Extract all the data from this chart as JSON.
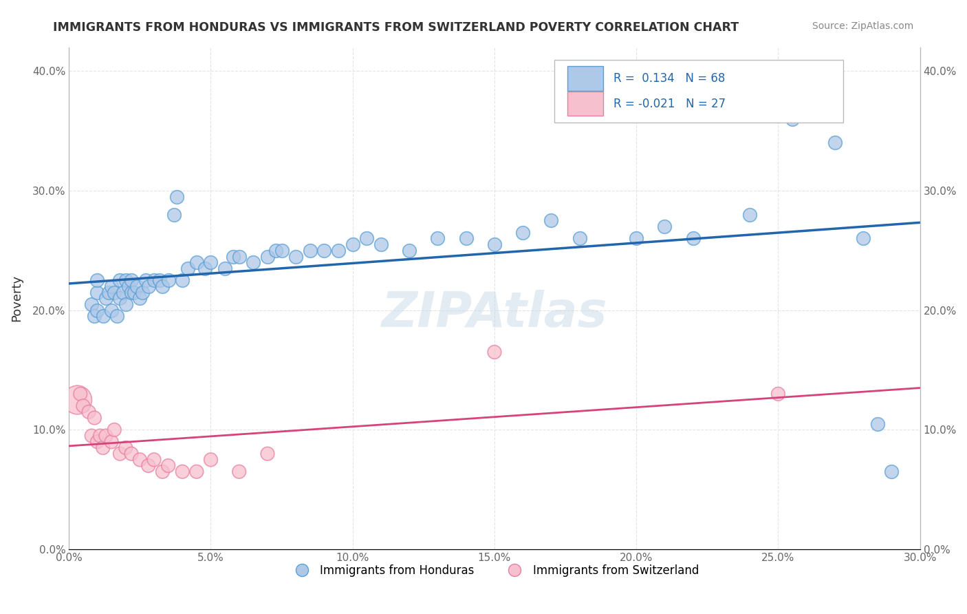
{
  "title": "IMMIGRANTS FROM HONDURAS VS IMMIGRANTS FROM SWITZERLAND POVERTY CORRELATION CHART",
  "source": "Source: ZipAtlas.com",
  "watermark": "ZIPAtlas",
  "xlabel_blue": "Immigrants from Honduras",
  "xlabel_pink": "Immigrants from Switzerland",
  "ylabel": "Poverty",
  "xlim": [
    0.0,
    0.3
  ],
  "ylim": [
    0.0,
    0.42
  ],
  "xtick_vals": [
    0.0,
    0.05,
    0.1,
    0.15,
    0.2,
    0.25,
    0.3
  ],
  "xtick_labels": [
    "0.0%",
    "5.0%",
    "10.0%",
    "15.0%",
    "20.0%",
    "25.0%",
    "30.0%"
  ],
  "ytick_vals": [
    0.0,
    0.1,
    0.2,
    0.3,
    0.4
  ],
  "ytick_labels": [
    "0.0%",
    "10.0%",
    "20.0%",
    "30.0%",
    "40.0%"
  ],
  "blue_R": 0.134,
  "blue_N": 68,
  "pink_R": -0.021,
  "pink_N": 27,
  "blue_color": "#aec8e8",
  "pink_color": "#f7c0ce",
  "blue_edge_color": "#5a9fd4",
  "pink_edge_color": "#e87fa0",
  "blue_line_color": "#2166ac",
  "pink_line_color": "#d6437a",
  "legend_border_color": "#cccccc",
  "grid_color": "#dddddd",
  "blue_x": [
    0.008,
    0.009,
    0.01,
    0.01,
    0.01,
    0.012,
    0.013,
    0.014,
    0.015,
    0.015,
    0.016,
    0.017,
    0.018,
    0.018,
    0.019,
    0.02,
    0.02,
    0.021,
    0.022,
    0.022,
    0.023,
    0.024,
    0.025,
    0.026,
    0.027,
    0.028,
    0.03,
    0.032,
    0.033,
    0.035,
    0.037,
    0.038,
    0.04,
    0.042,
    0.045,
    0.048,
    0.05,
    0.055,
    0.058,
    0.06,
    0.065,
    0.07,
    0.073,
    0.075,
    0.08,
    0.085,
    0.09,
    0.095,
    0.1,
    0.105,
    0.11,
    0.12,
    0.13,
    0.14,
    0.15,
    0.16,
    0.17,
    0.18,
    0.2,
    0.21,
    0.22,
    0.24,
    0.255,
    0.265,
    0.27,
    0.28,
    0.285,
    0.29
  ],
  "blue_y": [
    0.205,
    0.195,
    0.2,
    0.215,
    0.225,
    0.195,
    0.21,
    0.215,
    0.2,
    0.22,
    0.215,
    0.195,
    0.21,
    0.225,
    0.215,
    0.205,
    0.225,
    0.22,
    0.215,
    0.225,
    0.215,
    0.22,
    0.21,
    0.215,
    0.225,
    0.22,
    0.225,
    0.225,
    0.22,
    0.225,
    0.28,
    0.295,
    0.225,
    0.235,
    0.24,
    0.235,
    0.24,
    0.235,
    0.245,
    0.245,
    0.24,
    0.245,
    0.25,
    0.25,
    0.245,
    0.25,
    0.25,
    0.25,
    0.255,
    0.26,
    0.255,
    0.25,
    0.26,
    0.26,
    0.255,
    0.265,
    0.275,
    0.26,
    0.26,
    0.27,
    0.26,
    0.28,
    0.36,
    0.385,
    0.34,
    0.26,
    0.105,
    0.065
  ],
  "pink_x": [
    0.003,
    0.004,
    0.005,
    0.007,
    0.008,
    0.009,
    0.01,
    0.011,
    0.012,
    0.013,
    0.015,
    0.016,
    0.018,
    0.02,
    0.022,
    0.025,
    0.028,
    0.03,
    0.033,
    0.035,
    0.04,
    0.045,
    0.05,
    0.06,
    0.07,
    0.15,
    0.25
  ],
  "pink_y": [
    0.125,
    0.13,
    0.12,
    0.115,
    0.095,
    0.11,
    0.09,
    0.095,
    0.085,
    0.095,
    0.09,
    0.1,
    0.08,
    0.085,
    0.08,
    0.075,
    0.07,
    0.075,
    0.065,
    0.07,
    0.065,
    0.065,
    0.075,
    0.065,
    0.08,
    0.165,
    0.13
  ],
  "pink_sizes_special": [
    [
      0,
      900
    ]
  ],
  "dot_size": 200
}
